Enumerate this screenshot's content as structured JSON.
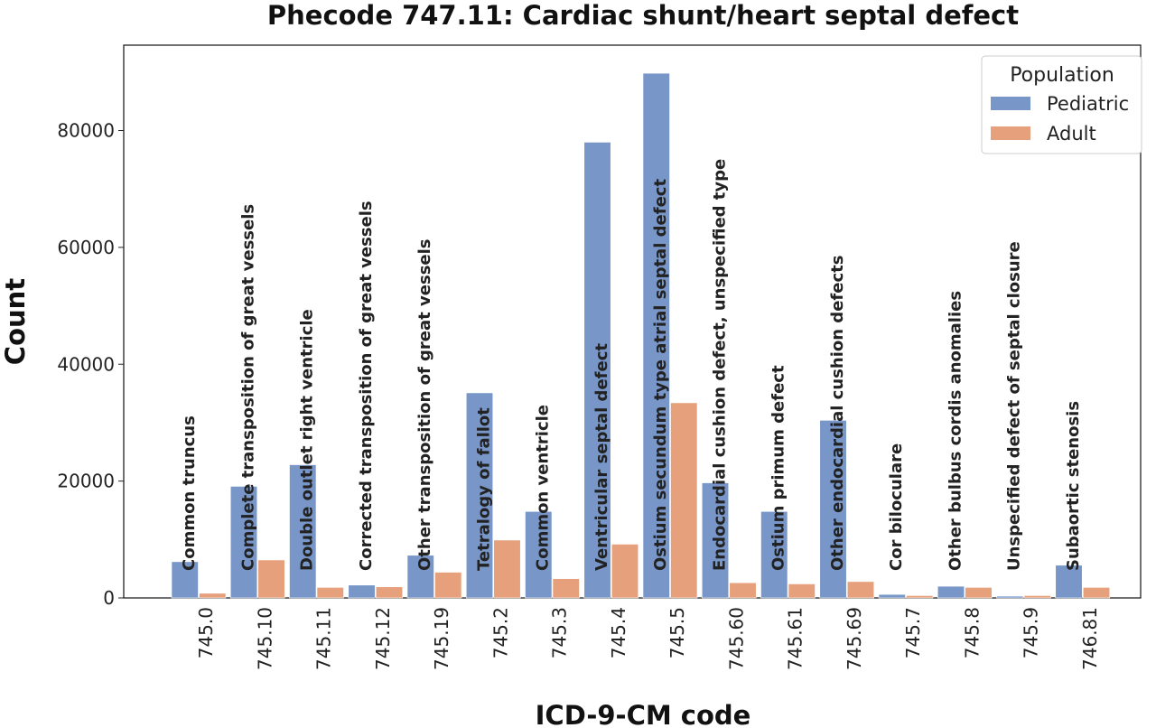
{
  "chart_data": {
    "type": "bar",
    "title": "Phecode 747.11: Cardiac shunt/heart septal defect",
    "xlabel": "ICD-9-CM code",
    "ylabel": "Count",
    "ylim": [
      0,
      95000
    ],
    "yticks": [
      0,
      20000,
      40000,
      60000,
      80000
    ],
    "ytick_labels": [
      "0",
      "20000",
      "40000",
      "60000",
      "80000"
    ],
    "grid": false,
    "legend": {
      "title": "Population",
      "placement": "top-right"
    },
    "categories": [
      "745.0",
      "745.10",
      "745.11",
      "745.12",
      "745.19",
      "745.2",
      "745.3",
      "745.4",
      "745.5",
      "745.60",
      "745.61",
      "745.69",
      "745.7",
      "745.8",
      "745.9",
      "746.81"
    ],
    "annotations": [
      "Common truncus",
      "Complete transposition of great vessels",
      "Double outlet right ventricle",
      "Corrected transposition of great vessels",
      "Other transposition of great vessels",
      "Tetralogy of fallot",
      "Common ventricle",
      "Ventricular septal defect",
      "Ostium secundum type atrial septal defect",
      "Endocardial cushion defect, unspecified type",
      "Ostium primum defect",
      "Other endocardial cushion defects",
      "Cor biloculare",
      "Other bulbus cordis anomalies",
      "Unspecified defect of septal closure",
      "Subaortic stenosis"
    ],
    "series": [
      {
        "name": "Pediatric",
        "color": "#7896c8",
        "values": [
          6200,
          19100,
          22800,
          2200,
          7300,
          35100,
          14800,
          78000,
          89800,
          19700,
          14800,
          30400,
          600,
          2000,
          300,
          5600
        ]
      },
      {
        "name": "Adult",
        "color": "#e6a07b",
        "values": [
          800,
          6500,
          1800,
          1900,
          4400,
          9900,
          3300,
          9200,
          33400,
          2600,
          2400,
          2800,
          400,
          1800,
          400,
          1800
        ]
      }
    ]
  }
}
